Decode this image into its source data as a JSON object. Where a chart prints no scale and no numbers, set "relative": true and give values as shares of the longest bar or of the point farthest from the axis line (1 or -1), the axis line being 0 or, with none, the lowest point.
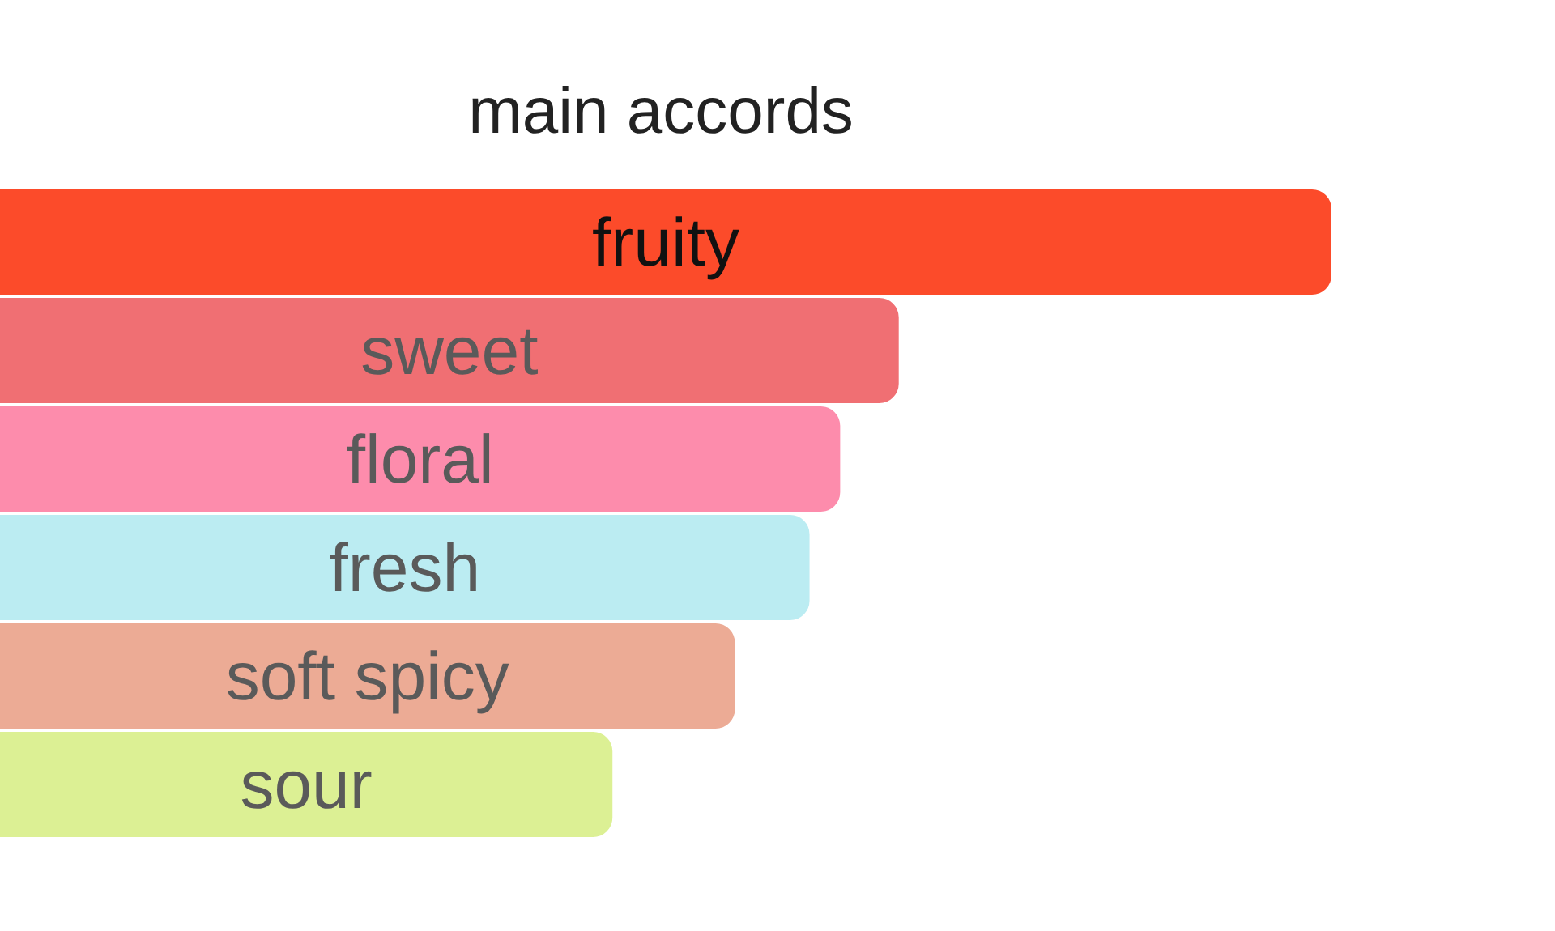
{
  "chart_data": {
    "type": "bar",
    "orientation": "horizontal",
    "relative": true,
    "title": "main accords",
    "categories": [
      "fruity",
      "sweet",
      "floral",
      "fresh",
      "soft spicy",
      "sour"
    ],
    "values": [
      1,
      0.675,
      0.631,
      0.608,
      0.552,
      0.46
    ],
    "colors": [
      "#fc4b2a",
      "#f06f73",
      "#fd8cac",
      "#bbecf2",
      "#ecab95",
      "#dcf094"
    ]
  }
}
